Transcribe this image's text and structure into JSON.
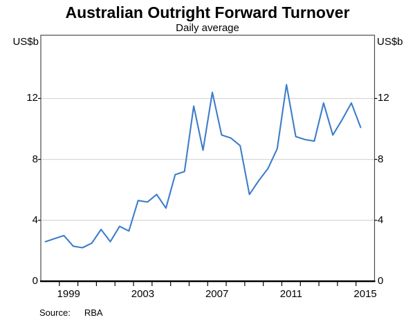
{
  "chart": {
    "title": "Australian Outright Forward Turnover",
    "subtitle": "Daily average",
    "y_unit": "US$b",
    "source_label": "Source:",
    "source_value": "RBA"
  },
  "chart_data": {
    "type": "line",
    "title": "Australian Outright Forward Turnover",
    "subtitle": "Daily average",
    "ylabel": "US$b",
    "source": "Source: RBA",
    "series_name": "AUD outright forward turnover (daily average, US$b)",
    "categories": [
      "1998 H1",
      "1998 H2",
      "1999 H1",
      "1999 H2",
      "2000 H1",
      "2000 H2",
      "2001 H1",
      "2001 H2",
      "2002 H1",
      "2002 H2",
      "2003 H1",
      "2003 H2",
      "2004 H1",
      "2004 H2",
      "2005 H1",
      "2005 H2",
      "2006 H1",
      "2006 H2",
      "2007 H1",
      "2007 H2",
      "2008 H1",
      "2008 H2",
      "2009 H1",
      "2009 H2",
      "2010 H1",
      "2010 H2",
      "2011 H1",
      "2011 H2",
      "2012 H1",
      "2012 H2",
      "2013 H1",
      "2013 H2",
      "2014 H1",
      "2014 H2",
      "2015 H1"
    ],
    "values": [
      2.6,
      2.8,
      3.0,
      2.3,
      2.2,
      2.5,
      3.4,
      2.6,
      3.6,
      3.3,
      5.3,
      5.2,
      5.7,
      4.8,
      7.0,
      7.2,
      11.5,
      8.6,
      12.4,
      9.6,
      9.4,
      8.9,
      5.7,
      6.6,
      7.4,
      8.7,
      12.9,
      9.5,
      9.3,
      9.2,
      11.7,
      9.6,
      10.6,
      11.7,
      10.1
    ],
    "x_start_year": 1998,
    "x_end_year": 2016,
    "x_minor_tick_years": [
      1999,
      2000,
      2001,
      2002,
      2003,
      2004,
      2005,
      2006,
      2007,
      2008,
      2009,
      2010,
      2011,
      2012,
      2013,
      2014,
      2015
    ],
    "x_labels": [
      "1999",
      "2003",
      "2007",
      "2011",
      "2015"
    ],
    "x_label_years": [
      1999.5,
      2003.5,
      2007.5,
      2011.5,
      2015.5
    ],
    "y_ticks": [
      0,
      4,
      8,
      12
    ],
    "ylim": [
      0,
      16.15
    ],
    "grid": true,
    "legend_position": "none",
    "line_color": "#3D7DCA",
    "grid_color": "#D8D8D8",
    "axis_color": "#000000",
    "frame_color": "#4A4A4A"
  }
}
